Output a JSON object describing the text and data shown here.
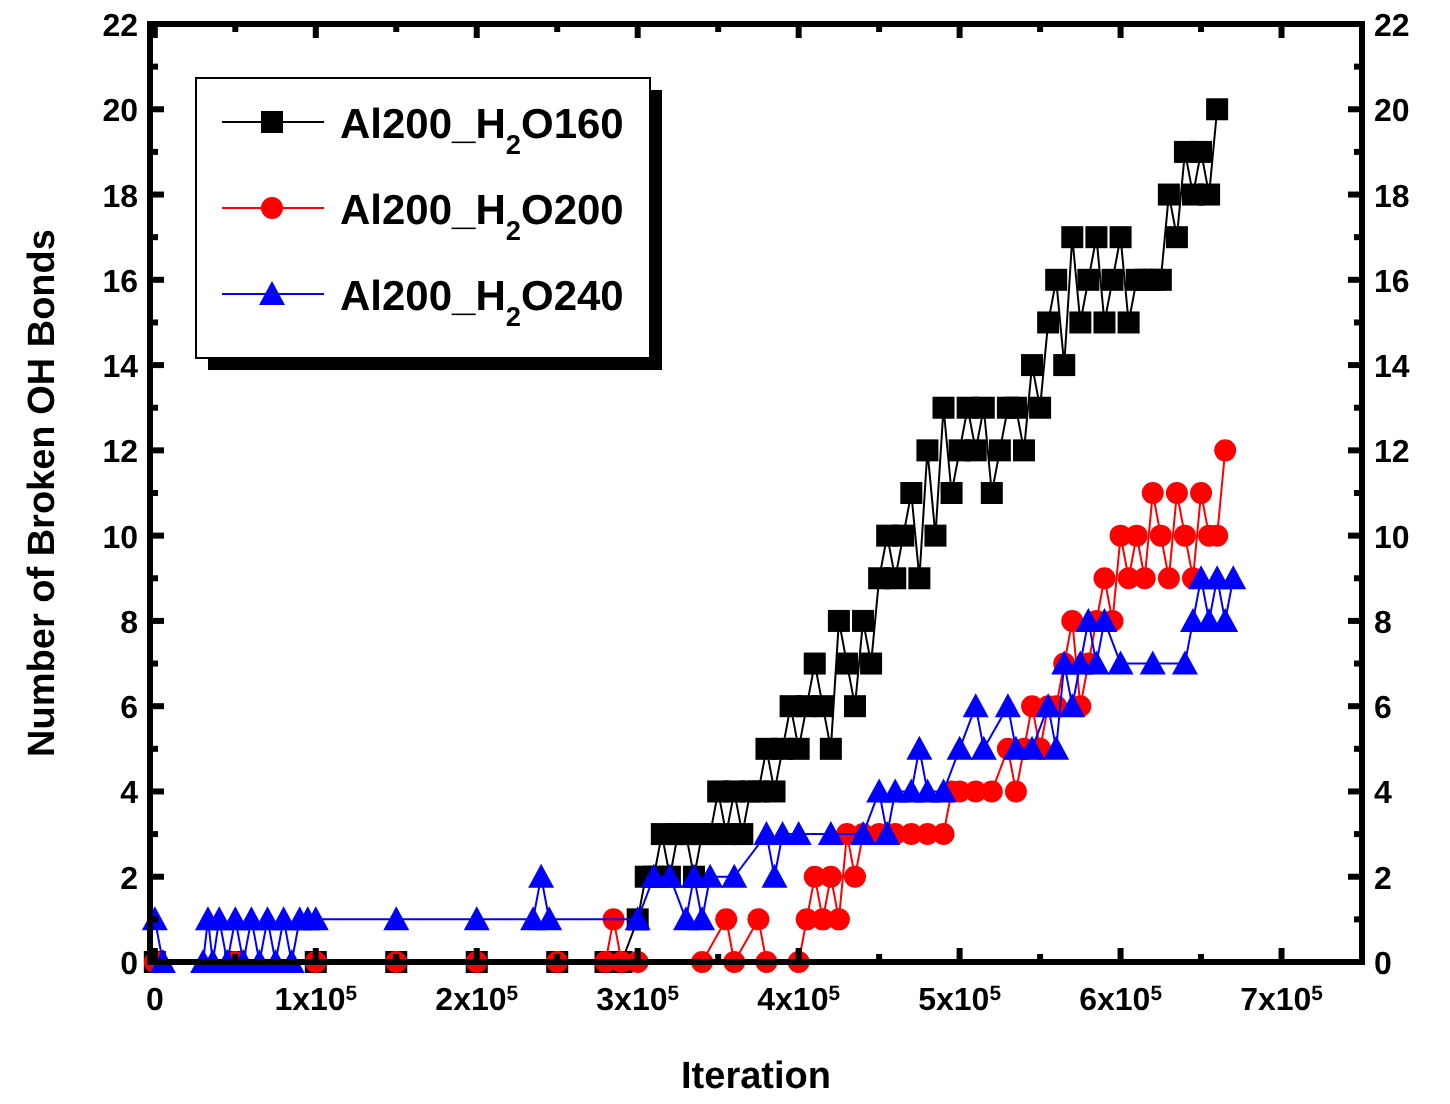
{
  "chart_data": {
    "type": "line",
    "xlabel": "Iteration",
    "ylabel": "Number of Broken OH Bonds",
    "xlim": [
      -3000,
      750000
    ],
    "ylim": [
      0,
      22
    ],
    "y2lim": [
      0,
      22
    ],
    "xticks": [
      {
        "value": 0,
        "label": "0"
      },
      {
        "value": 50000,
        "label": null
      },
      {
        "value": 100000,
        "label": "1x10$^{5}$"
      },
      {
        "value": 150000,
        "label": null
      },
      {
        "value": 200000,
        "label": "2x10$^{5}$"
      },
      {
        "value": 250000,
        "label": null
      },
      {
        "value": 300000,
        "label": "3x10$^{5}$"
      },
      {
        "value": 350000,
        "label": null
      },
      {
        "value": 400000,
        "label": "4x10$^{5}$"
      },
      {
        "value": 450000,
        "label": null
      },
      {
        "value": 500000,
        "label": "5x10$^{5}$"
      },
      {
        "value": 550000,
        "label": null
      },
      {
        "value": 600000,
        "label": "6x10$^{5}$"
      },
      {
        "value": 650000,
        "label": null
      },
      {
        "value": 700000,
        "label": "7x10$^{5}$"
      }
    ],
    "yticks": [
      0,
      {
        "value": 1,
        "label": null
      },
      2,
      {
        "value": 3,
        "label": null
      },
      4,
      {
        "value": 5,
        "label": null
      },
      6,
      {
        "value": 7,
        "label": null
      },
      8,
      {
        "value": 9,
        "label": null
      },
      10,
      {
        "value": 11,
        "label": null
      },
      12,
      {
        "value": 13,
        "label": null
      },
      14,
      {
        "value": 15,
        "label": null
      },
      16,
      {
        "value": 17,
        "label": null
      },
      18,
      {
        "value": 19,
        "label": null
      },
      20,
      {
        "value": 21,
        "label": null
      },
      22
    ],
    "y2ticks": [
      0,
      {
        "value": 1,
        "label": null
      },
      2,
      {
        "value": 3,
        "label": null
      },
      4,
      {
        "value": 5,
        "label": null
      },
      6,
      {
        "value": 7,
        "label": null
      },
      8,
      {
        "value": 9,
        "label": null
      },
      10,
      {
        "value": 11,
        "label": null
      },
      12,
      {
        "value": 13,
        "label": null
      },
      14,
      {
        "value": 15,
        "label": null
      },
      16,
      {
        "value": 17,
        "label": null
      },
      18,
      {
        "value": 19,
        "label": null
      },
      20,
      {
        "value": 21,
        "label": null
      },
      22
    ],
    "legend": "top left",
    "grid": false,
    "line_style": "solid",
    "series": [
      {
        "name": "Al200_H$_{2}$O160",
        "color": "#000000",
        "marker": "square",
        "x": [
          0,
          50000,
          100000,
          150000,
          200000,
          250000,
          280000,
          285000,
          290000,
          300000,
          305000,
          310000,
          315000,
          320000,
          325000,
          330000,
          335000,
          340000,
          345000,
          350000,
          355000,
          360000,
          365000,
          370000,
          375000,
          380000,
          385000,
          390000,
          395000,
          400000,
          405000,
          410000,
          415000,
          420000,
          425000,
          430000,
          435000,
          440000,
          445000,
          450000,
          455000,
          460000,
          465000,
          470000,
          475000,
          480000,
          485000,
          490000,
          495000,
          500000,
          505000,
          510000,
          515000,
          520000,
          525000,
          530000,
          535000,
          540000,
          545000,
          550000,
          555000,
          560000,
          565000,
          570000,
          575000,
          580000,
          585000,
          590000,
          595000,
          600000,
          605000,
          610000,
          615000,
          620000,
          625000,
          630000,
          635000,
          640000,
          645000,
          650000,
          655000,
          660000
        ],
        "values": [
          0,
          0,
          0,
          0,
          0,
          0,
          0,
          null,
          0,
          1,
          2,
          2,
          3,
          2,
          3,
          3,
          2,
          3,
          3,
          4,
          3,
          4,
          3,
          4,
          4,
          5,
          4,
          5,
          6,
          5,
          6,
          7,
          6,
          5,
          8,
          7,
          6,
          8,
          7,
          9,
          10,
          9,
          10,
          11,
          9,
          12,
          10,
          13,
          11,
          12,
          13,
          12,
          13,
          11,
          12,
          13,
          13,
          12,
          14,
          13,
          15,
          16,
          14,
          17,
          15,
          16,
          17,
          15,
          16,
          17,
          15,
          16,
          16,
          16,
          16,
          18,
          17,
          19,
          18,
          19,
          18,
          20
        ]
      },
      {
        "name": "Al200_H$_{2}$O200",
        "color": "#ff0000",
        "marker": "circle",
        "x": [
          0,
          50000,
          100000,
          150000,
          200000,
          250000,
          280000,
          285000,
          290000,
          300000,
          340000,
          355000,
          360000,
          375000,
          380000,
          400000,
          405000,
          410000,
          415000,
          420000,
          425000,
          430000,
          435000,
          440000,
          450000,
          460000,
          470000,
          480000,
          490000,
          495000,
          500000,
          510000,
          520000,
          530000,
          535000,
          540000,
          545000,
          550000,
          555000,
          560000,
          565000,
          570000,
          575000,
          580000,
          585000,
          590000,
          595000,
          600000,
          605000,
          610000,
          615000,
          620000,
          625000,
          630000,
          635000,
          640000,
          645000,
          650000,
          655000,
          660000,
          665000
        ],
        "values": [
          0,
          0,
          0,
          0,
          0,
          0,
          0,
          1,
          0,
          0,
          0,
          1,
          0,
          1,
          0,
          0,
          1,
          2,
          1,
          2,
          1,
          3,
          2,
          3,
          3,
          3,
          3,
          3,
          3,
          4,
          4,
          4,
          4,
          5,
          4,
          5,
          6,
          5,
          6,
          6,
          7,
          8,
          6,
          7,
          8,
          9,
          8,
          10,
          9,
          10,
          9,
          11,
          10,
          9,
          11,
          10,
          9,
          11,
          10,
          10,
          12
        ]
      },
      {
        "name": "Al200_H$_{2}$O240",
        "color": "#0000ff",
        "marker": "triangle",
        "x": [
          0,
          5000,
          30000,
          33000,
          36000,
          40000,
          45000,
          50000,
          55000,
          60000,
          65000,
          70000,
          75000,
          80000,
          85000,
          90000,
          95000,
          100000,
          150000,
          200000,
          235000,
          240000,
          245000,
          300000,
          310000,
          320000,
          330000,
          335000,
          340000,
          345000,
          360000,
          380000,
          385000,
          390000,
          400000,
          420000,
          440000,
          450000,
          455000,
          460000,
          470000,
          475000,
          480000,
          490000,
          500000,
          510000,
          515000,
          530000,
          535000,
          545000,
          555000,
          560000,
          565000,
          570000,
          575000,
          580000,
          585000,
          590000,
          600000,
          620000,
          640000,
          645000,
          650000,
          655000,
          660000,
          665000,
          670000
        ],
        "values": [
          1,
          0,
          0,
          1,
          0,
          1,
          0,
          1,
          0,
          1,
          0,
          1,
          0,
          1,
          0,
          1,
          1,
          1,
          1,
          1,
          1,
          2,
          1,
          1,
          2,
          2,
          1,
          2,
          1,
          2,
          2,
          3,
          2,
          3,
          3,
          3,
          3,
          4,
          3,
          4,
          4,
          5,
          4,
          4,
          5,
          6,
          5,
          6,
          5,
          5,
          6,
          5,
          7,
          6,
          7,
          8,
          7,
          8,
          7,
          7,
          7,
          8,
          9,
          8,
          9,
          8,
          9
        ]
      }
    ]
  }
}
